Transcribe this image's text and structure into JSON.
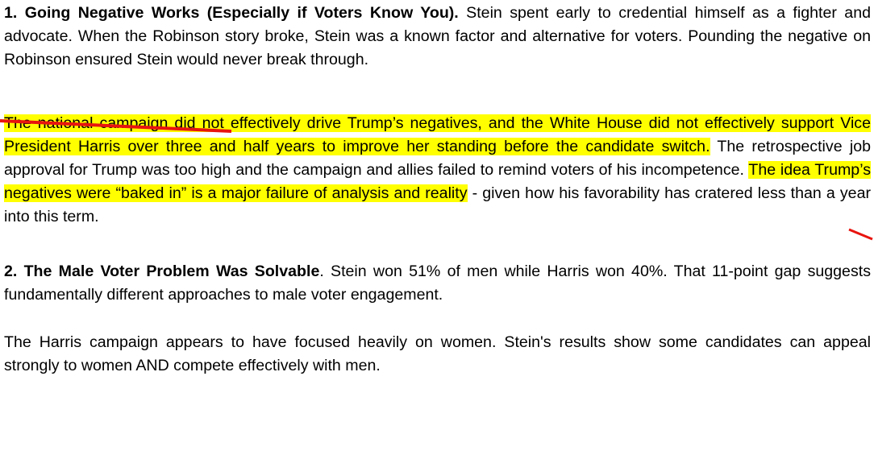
{
  "paragraphs": [
    {
      "runs": [
        {
          "text": "1. Going Negative Works (Especially if Voters Know You).",
          "bold": true,
          "highlight": false
        },
        {
          "text": " Stein spent early to credential himself as a fighter and advocate.  When the Robinson story broke, Stein was a known factor and alternative for voters.  Pounding the negative on Robinson ensured Stein would never break through.",
          "bold": false,
          "highlight": false
        }
      ]
    },
    {
      "runs": [
        {
          "text": "The national campaign did not effectively drive Trump’s negatives, and the White House did not effectively support Vice President Harris over three and half years to improve her standing before the candidate switch.",
          "bold": false,
          "highlight": true
        },
        {
          "text": "  The retrospective job approval for Trump was too high and the campaign and allies failed to remind voters of his incompetence.  ",
          "bold": false,
          "highlight": false
        },
        {
          "text": "The idea Trump’s negatives were “baked in” is a major failure of analysis and reality",
          "bold": false,
          "highlight": true
        },
        {
          "text": " - given how his favorability has cratered less than a year into this term.",
          "bold": false,
          "highlight": false
        }
      ]
    },
    {
      "runs": [
        {
          "text": "2. The Male Voter Problem Was Solvable",
          "bold": true,
          "highlight": false
        },
        {
          "text": ". Stein won 51% of men while Harris won 40%. That 11-point gap suggests fundamentally different approaches to male voter engagement.",
          "bold": false,
          "highlight": false
        }
      ]
    },
    {
      "runs": [
        {
          "text": "The Harris campaign appears to have focused heavily on women. Stein's results show some candidates can appeal strongly to women AND compete effectively with men.",
          "bold": false,
          "highlight": false
        }
      ]
    }
  ]
}
